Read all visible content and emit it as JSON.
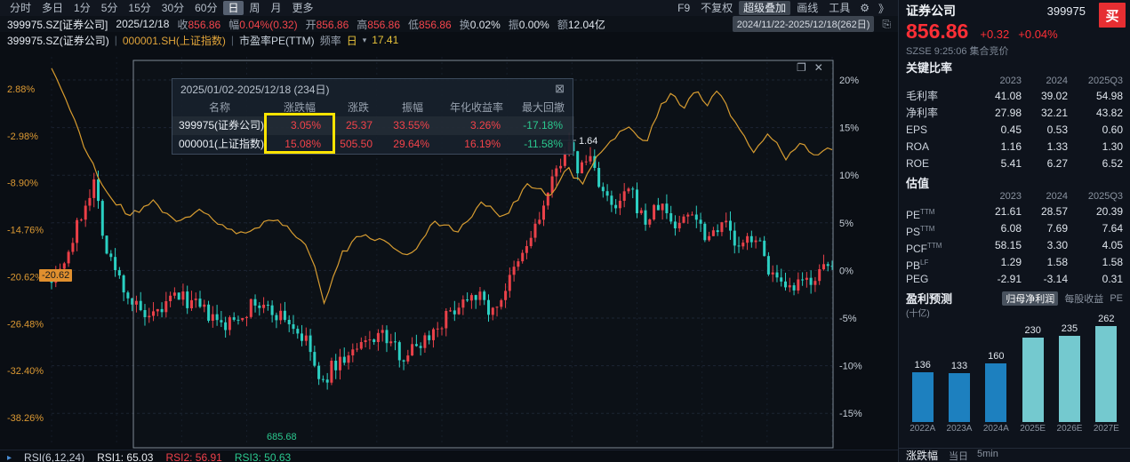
{
  "toolbar": {
    "periods": [
      "分时",
      "多日",
      "1分",
      "5分",
      "15分",
      "30分",
      "60分",
      "日",
      "周",
      "月",
      "更多"
    ],
    "active_period": "日",
    "right_items": [
      "F9",
      "不复权",
      "超级叠加",
      "画线",
      "工具"
    ],
    "highlighted_item": "超级叠加"
  },
  "info_bar": {
    "symbol": "399975.SZ[证券公司]",
    "date": "2025/12/18",
    "fields": [
      {
        "label": "收",
        "value": "856.86",
        "color": "up"
      },
      {
        "label": "幅",
        "value": "0.04%(0.32)",
        "color": "up"
      },
      {
        "label": "开",
        "value": "856.86",
        "color": "up"
      },
      {
        "label": "高",
        "value": "856.86",
        "color": "up"
      },
      {
        "label": "低",
        "value": "856.86",
        "color": "up"
      },
      {
        "label": "换",
        "value": "0.02%",
        "color": "flat"
      },
      {
        "label": "振",
        "value": "0.00%",
        "color": "flat"
      },
      {
        "label": "额",
        "value": "12.04亿",
        "color": "flat"
      }
    ],
    "range": "2024/11/22-2025/12/18(262日)"
  },
  "legend_bar": {
    "main": "399975.SZ(证券公司)",
    "overlay": "000001.SH(上证指数)",
    "indicator": "市盈率PE(TTM)",
    "freq_label": "频率",
    "freq_value": "日",
    "indicator_value": "17.41"
  },
  "stats_popup": {
    "title": "2025/01/02-2025/12/18 (234日)",
    "headers": [
      "名称",
      "涨跌幅",
      "涨跌",
      "振幅",
      "年化收益率",
      "最大回撤"
    ],
    "rows": [
      {
        "name": "399975(证券公司)",
        "values": [
          "3.05%",
          "25.37",
          "33.55%",
          "3.26%",
          "-17.18%"
        ]
      },
      {
        "name": "000001(上证指数)",
        "values": [
          "15.08%",
          "505.50",
          "29.64%",
          "16.19%",
          "-11.58%"
        ]
      }
    ]
  },
  "chart": {
    "left_ticks": [
      "2.88%",
      "-2.98%",
      "-8.90%",
      "-14.76%",
      "-20.62%",
      "-26.48%",
      "-32.40%",
      "-38.26%"
    ],
    "right_ticks": [
      "20%",
      "15%",
      "10%",
      "5%",
      "0%",
      "-5%",
      "-10%",
      "-15%"
    ],
    "annotations": {
      "peak_label": "1.64",
      "trough_label": "685.68",
      "start_badge": "-20.62"
    }
  },
  "chart_data": [
    {
      "type": "candlestick",
      "title": "399975.SZ 证券公司 日K 与 上证指数 / 市盈率PE(TTM) 叠加",
      "x_range": "2024/11/22-2025/12/18(262日)",
      "right_axis_ticks_pct": [
        20,
        15,
        10,
        5,
        0,
        -5,
        -10,
        -15
      ],
      "left_axis_ticks_pct": [
        2.88,
        -2.98,
        -8.9,
        -14.76,
        -20.62,
        -26.48,
        -32.4,
        -38.26
      ],
      "candle_count": 185,
      "stock_anchor_points": [
        [
          0,
          -0.5
        ],
        [
          0.02,
          1.5
        ],
        [
          0.045,
          7.5
        ],
        [
          0.055,
          9.5
        ],
        [
          0.07,
          2.0
        ],
        [
          0.1,
          -3.0
        ],
        [
          0.125,
          -5.5
        ],
        [
          0.16,
          -2.5
        ],
        [
          0.19,
          -4.0
        ],
        [
          0.22,
          -6.0
        ],
        [
          0.26,
          -3.5
        ],
        [
          0.3,
          -5.0
        ],
        [
          0.33,
          -8.0
        ],
        [
          0.345,
          -12.5
        ],
        [
          0.36,
          -10.0
        ],
        [
          0.39,
          -8.5
        ],
        [
          0.42,
          -6.5
        ],
        [
          0.45,
          -9.0
        ],
        [
          0.48,
          -7.0
        ],
        [
          0.51,
          -4.5
        ],
        [
          0.54,
          -2.0
        ],
        [
          0.565,
          -4.5
        ],
        [
          0.6,
          1.0
        ],
        [
          0.625,
          5.5
        ],
        [
          0.645,
          10.0
        ],
        [
          0.66,
          13.5
        ],
        [
          0.675,
          10.5
        ],
        [
          0.69,
          12.0
        ],
        [
          0.705,
          8.5
        ],
        [
          0.72,
          6.0
        ],
        [
          0.74,
          8.5
        ],
        [
          0.76,
          5.0
        ],
        [
          0.78,
          7.0
        ],
        [
          0.8,
          4.5
        ],
        [
          0.82,
          6.5
        ],
        [
          0.84,
          3.5
        ],
        [
          0.86,
          5.5
        ],
        [
          0.88,
          2.0
        ],
        [
          0.9,
          4.0
        ],
        [
          0.92,
          0.0
        ],
        [
          0.94,
          -2.5
        ],
        [
          0.96,
          -1.5
        ],
        [
          0.98,
          -0.5
        ],
        [
          1.0,
          0.5
        ]
      ],
      "overlay_line_anchor_points": [
        [
          0,
          5.5
        ],
        [
          0.015,
          2.5
        ],
        [
          0.04,
          -4.0
        ],
        [
          0.07,
          -10.0
        ],
        [
          0.1,
          -13.0
        ],
        [
          0.13,
          -11.0
        ],
        [
          0.16,
          -14.0
        ],
        [
          0.19,
          -12.0
        ],
        [
          0.22,
          -14.5
        ],
        [
          0.25,
          -15.5
        ],
        [
          0.28,
          -13.0
        ],
        [
          0.31,
          -15.0
        ],
        [
          0.335,
          -18.0
        ],
        [
          0.35,
          -24.0
        ],
        [
          0.37,
          -18.0
        ],
        [
          0.4,
          -15.0
        ],
        [
          0.43,
          -16.5
        ],
        [
          0.46,
          -18.0
        ],
        [
          0.49,
          -13.5
        ],
        [
          0.52,
          -15.0
        ],
        [
          0.55,
          -11.5
        ],
        [
          0.58,
          -13.0
        ],
        [
          0.61,
          -9.0
        ],
        [
          0.64,
          -10.5
        ],
        [
          0.66,
          -7.0
        ],
        [
          0.68,
          -9.0
        ],
        [
          0.7,
          -5.5
        ],
        [
          0.72,
          -3.5
        ],
        [
          0.74,
          -1.5
        ],
        [
          0.76,
          -4.0
        ],
        [
          0.78,
          0.5
        ],
        [
          0.795,
          2.5
        ],
        [
          0.81,
          0.5
        ],
        [
          0.825,
          3.0
        ],
        [
          0.84,
          1.0
        ],
        [
          0.855,
          2.5
        ],
        [
          0.87,
          -0.5
        ],
        [
          0.885,
          -2.5
        ],
        [
          0.9,
          -5.0
        ],
        [
          0.92,
          -2.5
        ],
        [
          0.94,
          -6.0
        ],
        [
          0.96,
          -4.0
        ],
        [
          0.98,
          -5.5
        ],
        [
          1.0,
          -4.5
        ]
      ],
      "annotations": {
        "peak_value": "1.64",
        "trough_value": "685.68",
        "start_value": "-20.62"
      },
      "colors": {
        "up": "#ec3f47",
        "down": "#2ad0c2",
        "overlay_line": "#d99c2e",
        "left_axis": "#dd9a33",
        "right_axis": "#c4ccd6"
      }
    },
    {
      "type": "bar",
      "title": "盈利预测",
      "unit": "(十亿)",
      "categories": [
        "2022A",
        "2023A",
        "2024A",
        "2025E",
        "2026E",
        "2027E"
      ],
      "values": [
        136,
        133,
        160,
        230,
        235,
        262
      ],
      "bar_colors": [
        "#1d80bf",
        "#1d80bf",
        "#1d80bf",
        "#74c9cf",
        "#74c9cf",
        "#74c9cf"
      ]
    }
  ],
  "quote_panel": {
    "name": "证券公司",
    "code": "399975",
    "buy_label": "买",
    "price": "856.86",
    "change": "+0.32",
    "change_pct": "+0.04%",
    "session": "SZSE 9:25:06 集合竞价"
  },
  "key_ratios": {
    "title": "关键比率",
    "years": [
      "2023",
      "2024",
      "2025Q3"
    ],
    "rows": [
      [
        "毛利率",
        "41.08",
        "39.02",
        "54.98"
      ],
      [
        "净利率",
        "27.98",
        "32.21",
        "43.82"
      ],
      [
        "EPS",
        "0.45",
        "0.53",
        "0.60"
      ],
      [
        "ROA",
        "1.16",
        "1.33",
        "1.30"
      ],
      [
        "ROE",
        "5.41",
        "6.27",
        "6.52"
      ]
    ]
  },
  "valuation": {
    "title": "估值",
    "years": [
      "2023",
      "2024",
      "2025Q3"
    ],
    "rows": [
      {
        "label": "PE",
        "sup": "TTM",
        "values": [
          "21.61",
          "28.57",
          "20.39"
        ]
      },
      {
        "label": "PS",
        "sup": "TTM",
        "values": [
          "6.08",
          "7.69",
          "7.64"
        ]
      },
      {
        "label": "PCF",
        "sup": "TTM",
        "values": [
          "58.15",
          "3.30",
          "4.05"
        ]
      },
      {
        "label": "PB",
        "sup": "LF",
        "values": [
          "1.29",
          "1.58",
          "1.58"
        ]
      },
      {
        "label": "PEG",
        "sup": "",
        "values": [
          "-2.91",
          "-3.14",
          "0.31"
        ]
      }
    ]
  },
  "forecast": {
    "title": "盈利预测",
    "unit": "(十亿)",
    "tabs": [
      "归母净利润",
      "每股收益",
      "PE"
    ],
    "active_tab": "归母净利润"
  },
  "bottom_tabs": {
    "main": "涨跌幅",
    "items": [
      "当日",
      "5min"
    ]
  },
  "rsi_bar": {
    "label": "RSI(6,12,24)",
    "items": [
      {
        "text": "RSI1: 65.03",
        "color": "#e8ebef"
      },
      {
        "text": "RSI2: 56.91",
        "color": "#f0404a"
      },
      {
        "text": "RSI3: 50.63",
        "color": "#2bc98f"
      }
    ]
  }
}
